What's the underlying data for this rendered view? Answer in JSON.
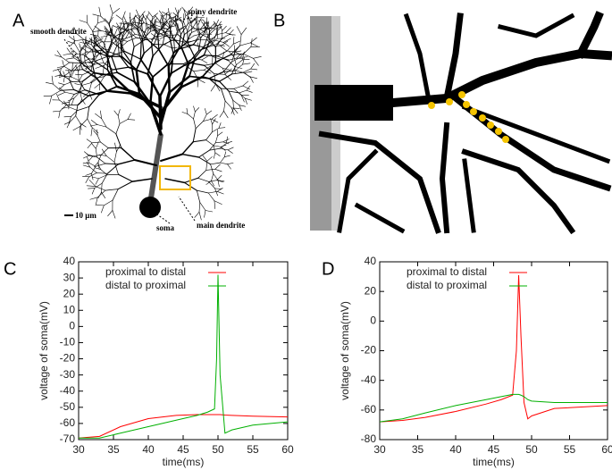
{
  "panels": {
    "a": {
      "label": "A",
      "annotations": [
        "smooth dendrite",
        "spiny dendrite",
        "10 μm",
        "soma",
        "main dendrite"
      ]
    },
    "b": {
      "label": "B"
    }
  },
  "chart_data": [
    {
      "type": "line",
      "label": "C",
      "xlabel": "time(ms)",
      "ylabel": "voltage of soma(mV)",
      "x": [
        30,
        33,
        36,
        40,
        44,
        47,
        48.5,
        49.5,
        49.8,
        50,
        50.3,
        51,
        52,
        55,
        60
      ],
      "series": [
        {
          "name": "proximal to distal",
          "color": "#ff0000",
          "values": [
            -69,
            -68,
            -62,
            -57,
            -55,
            -54.5,
            -54.5,
            -54.5,
            -54.5,
            -54.5,
            -54.5,
            -54.8,
            -55,
            -55.5,
            -56
          ]
        },
        {
          "name": "distal to proximal",
          "color": "#00b000",
          "values": [
            -69,
            -69,
            -66,
            -62,
            -58,
            -55,
            -53,
            -51,
            -20,
            32,
            -30,
            -66,
            -64,
            -61,
            -59
          ]
        }
      ],
      "xlim": [
        30,
        60
      ],
      "xticks": [
        30,
        35,
        40,
        45,
        50,
        55,
        60
      ],
      "ylim": [
        -70,
        40
      ],
      "yticks": [
        -70,
        -60,
        -50,
        -40,
        -30,
        -20,
        -10,
        0,
        10,
        20,
        30,
        40
      ]
    },
    {
      "type": "line",
      "label": "D",
      "xlabel": "time(ms)",
      "ylabel": "voltage of soma(mV)",
      "x": [
        30,
        33,
        36,
        40,
        44,
        46,
        47.5,
        48,
        48.3,
        48.6,
        49,
        49.5,
        50,
        53,
        60
      ],
      "series": [
        {
          "name": "proximal to distal",
          "color": "#ff0000",
          "values": [
            -68,
            -67,
            -65,
            -61,
            -56,
            -53,
            -50,
            -20,
            31,
            -10,
            -55,
            -66,
            -64,
            -59,
            -57
          ]
        },
        {
          "name": "distal to proximal",
          "color": "#00b000",
          "values": [
            -68,
            -66,
            -62,
            -57,
            -53,
            -51,
            -49.5,
            -49.5,
            -49.5,
            -50,
            -51,
            -53,
            -54,
            -55,
            -55
          ]
        }
      ],
      "xlim": [
        30,
        60
      ],
      "xticks": [
        30,
        35,
        40,
        45,
        50,
        55,
        60
      ],
      "ylim": [
        -80,
        40
      ],
      "yticks": [
        -80,
        -60,
        -40,
        -20,
        0,
        20,
        40
      ]
    }
  ]
}
